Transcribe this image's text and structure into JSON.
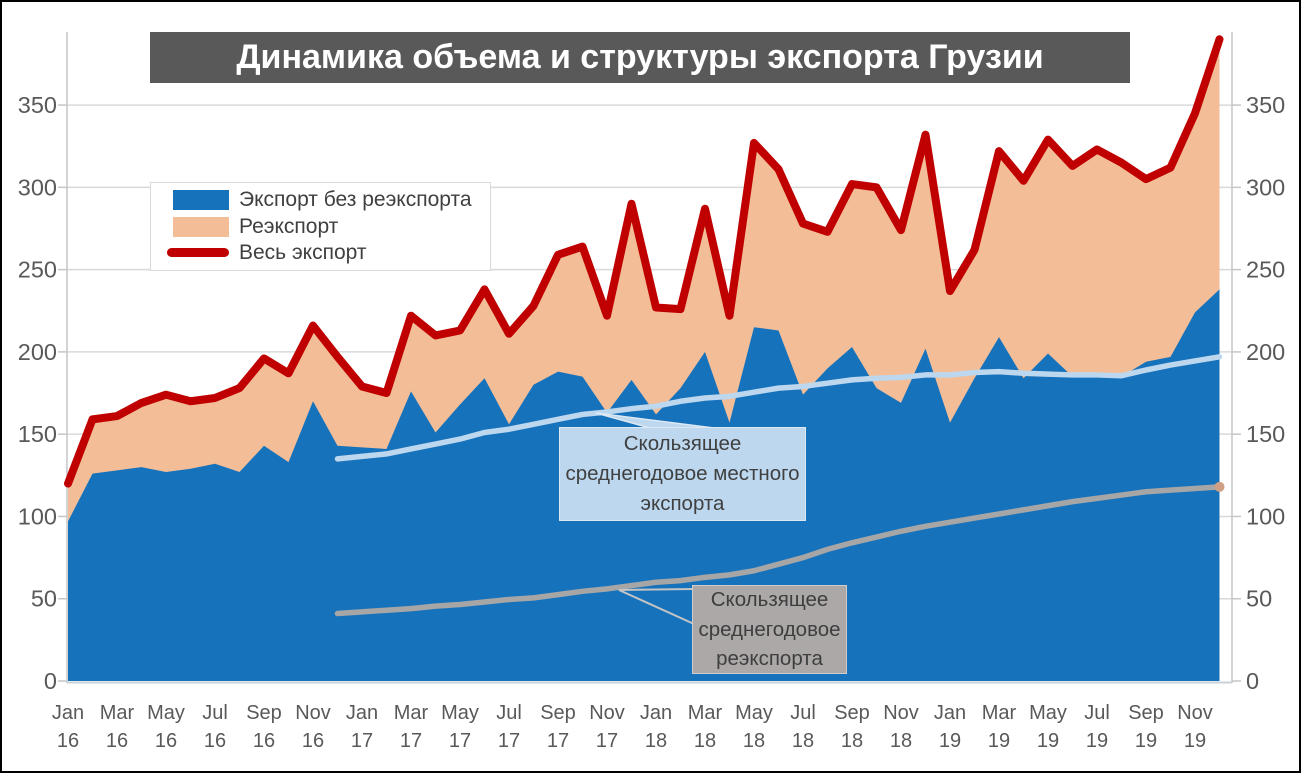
{
  "figure": {
    "title": "Динамика объема и структуры экспорта Грузии"
  },
  "legend": {
    "items": [
      {
        "label": "Экспорт без реэкспорта",
        "color": "#1772BC",
        "type": "area"
      },
      {
        "label": "Реэкспорт",
        "color": "#F3BE97",
        "type": "area"
      },
      {
        "label": "Весь экспорт",
        "color": "#C00000",
        "type": "line"
      }
    ]
  },
  "annotations": {
    "local_ma": {
      "lines": [
        "Скользящее",
        "среднегодовое местного",
        "экспорта"
      ],
      "fill": "#BDD7EE",
      "points_at": "ma_local line near Oct 17"
    },
    "reexport_ma": {
      "lines": [
        "Скользящее",
        "среднегодовое",
        "реэкспорта"
      ],
      "fill": "#ACA8A8",
      "points_at": "ma_reexport line near Nov 17"
    }
  },
  "chart_data": {
    "type": "area",
    "stacked": true,
    "title": "Динамика объема и структуры экспорта Грузии",
    "xlabel": "",
    "ylabel": "",
    "ylim": [
      0,
      394
    ],
    "y_ticks": [
      0,
      50,
      100,
      150,
      200,
      250,
      300,
      350
    ],
    "grid": true,
    "legend_position": "upper-left-inside",
    "x": [
      "Jan 16",
      "Feb 16",
      "Mar 16",
      "Apr 16",
      "May 16",
      "Jun 16",
      "Jul 16",
      "Aug 16",
      "Sep 16",
      "Oct 16",
      "Nov 16",
      "Dec 16",
      "Jan 17",
      "Feb 17",
      "Mar 17",
      "Apr 17",
      "May 17",
      "Jun 17",
      "Jul 17",
      "Aug 17",
      "Sep 17",
      "Oct 17",
      "Nov 17",
      "Dec 17",
      "Jan 18",
      "Feb 18",
      "Mar 18",
      "Apr 18",
      "May 18",
      "Jun 18",
      "Jul 18",
      "Aug 18",
      "Sep 18",
      "Oct 18",
      "Nov 18",
      "Dec 18",
      "Jan 19",
      "Feb 19",
      "Mar 19",
      "Apr 19",
      "May 19",
      "Jun 19",
      "Jul 19",
      "Aug 19",
      "Sep 19",
      "Oct 19",
      "Nov 19",
      "Dec 19"
    ],
    "x_tick_labels": [
      {
        "month": "Jan",
        "year": "16"
      },
      {
        "month": "Mar",
        "year": "16"
      },
      {
        "month": "May",
        "year": "16"
      },
      {
        "month": "Jul",
        "year": "16"
      },
      {
        "month": "Sep",
        "year": "16"
      },
      {
        "month": "Nov",
        "year": "16"
      },
      {
        "month": "Jan",
        "year": "17"
      },
      {
        "month": "Mar",
        "year": "17"
      },
      {
        "month": "May",
        "year": "17"
      },
      {
        "month": "Jul",
        "year": "17"
      },
      {
        "month": "Sep",
        "year": "17"
      },
      {
        "month": "Nov",
        "year": "17"
      },
      {
        "month": "Jan",
        "year": "18"
      },
      {
        "month": "Mar",
        "year": "18"
      },
      {
        "month": "May",
        "year": "18"
      },
      {
        "month": "Jul",
        "year": "18"
      },
      {
        "month": "Sep",
        "year": "18"
      },
      {
        "month": "Nov",
        "year": "18"
      },
      {
        "month": "Jan",
        "year": "19"
      },
      {
        "month": "Mar",
        "year": "19"
      },
      {
        "month": "May",
        "year": "19"
      },
      {
        "month": "Jul",
        "year": "19"
      },
      {
        "month": "Sep",
        "year": "19"
      },
      {
        "month": "Nov",
        "year": "19"
      }
    ],
    "series": [
      {
        "name": "Экспорт без реэкспорта",
        "type": "area",
        "color": "#1772BC",
        "values": [
          97,
          126,
          128,
          130,
          127,
          129,
          132,
          127,
          143,
          133,
          170,
          143,
          142,
          141,
          176,
          151,
          168,
          184,
          156,
          180,
          188,
          185,
          163,
          183,
          162,
          178,
          200,
          157,
          215,
          213,
          174,
          190,
          203,
          178,
          169,
          202,
          157,
          184,
          209,
          184,
          199,
          185,
          186,
          185,
          194,
          197,
          224,
          238
        ]
      },
      {
        "name": "Реэкспорт",
        "type": "area",
        "color": "#F3BE97",
        "values": [
          23,
          33,
          33,
          39,
          47,
          41,
          40,
          51,
          53,
          54,
          46,
          54,
          37,
          34,
          46,
          59,
          45,
          54,
          55,
          48,
          71,
          79,
          59,
          107,
          65,
          48,
          87,
          65,
          112,
          98,
          104,
          83,
          99,
          122,
          105,
          130,
          80,
          78,
          113,
          120,
          130,
          128,
          137,
          130,
          111,
          115,
          121,
          152
        ]
      },
      {
        "name": "Весь экспорт",
        "type": "line",
        "color": "#C00000",
        "stroke_width": 8,
        "values": [
          120,
          159,
          161,
          169,
          174,
          170,
          172,
          178,
          196,
          187,
          216,
          197,
          179,
          175,
          222,
          210,
          213,
          238,
          211,
          228,
          259,
          264,
          222,
          290,
          227,
          226,
          287,
          222,
          327,
          311,
          278,
          273,
          302,
          300,
          274,
          332,
          237,
          262,
          322,
          304,
          329,
          313,
          323,
          315,
          305,
          312,
          345,
          390
        ]
      },
      {
        "name": "Скользящее среднегодовое местного экспорта",
        "type": "line",
        "color": "#BDD7EE",
        "stroke_width": 5.5,
        "start_index": 11,
        "values": [
          135,
          136.5,
          138,
          141,
          144,
          147,
          151,
          153,
          156,
          159,
          162,
          163.5,
          165.5,
          167,
          170,
          172,
          173,
          175.5,
          178,
          179,
          181,
          183,
          184,
          184.5,
          186,
          186,
          187.5,
          188,
          187,
          186.5,
          186,
          186,
          185.5,
          189,
          192,
          194.5,
          197
        ]
      },
      {
        "name": "Скользящее среднегодовое реэкспорта",
        "type": "line",
        "color": "#A6A6A6",
        "stroke_width": 5.5,
        "start_index": 11,
        "end_dot_color": "#D0A085",
        "values": [
          41,
          42,
          43,
          44,
          45.5,
          46.5,
          48,
          49.5,
          50.5,
          52.5,
          54.5,
          56,
          58,
          60,
          61,
          63,
          64.5,
          67,
          71,
          75,
          80,
          84,
          87.5,
          91,
          94,
          96.5,
          99,
          101.5,
          104,
          106.5,
          109,
          111,
          113,
          115,
          116,
          117,
          118
        ]
      }
    ],
    "colors": {
      "grid": "#D9D9D9",
      "axis": "#C6C6C6",
      "tick_label": "#595959",
      "title_bar_bg": "#595959",
      "title_text": "#FFFFFF"
    }
  }
}
